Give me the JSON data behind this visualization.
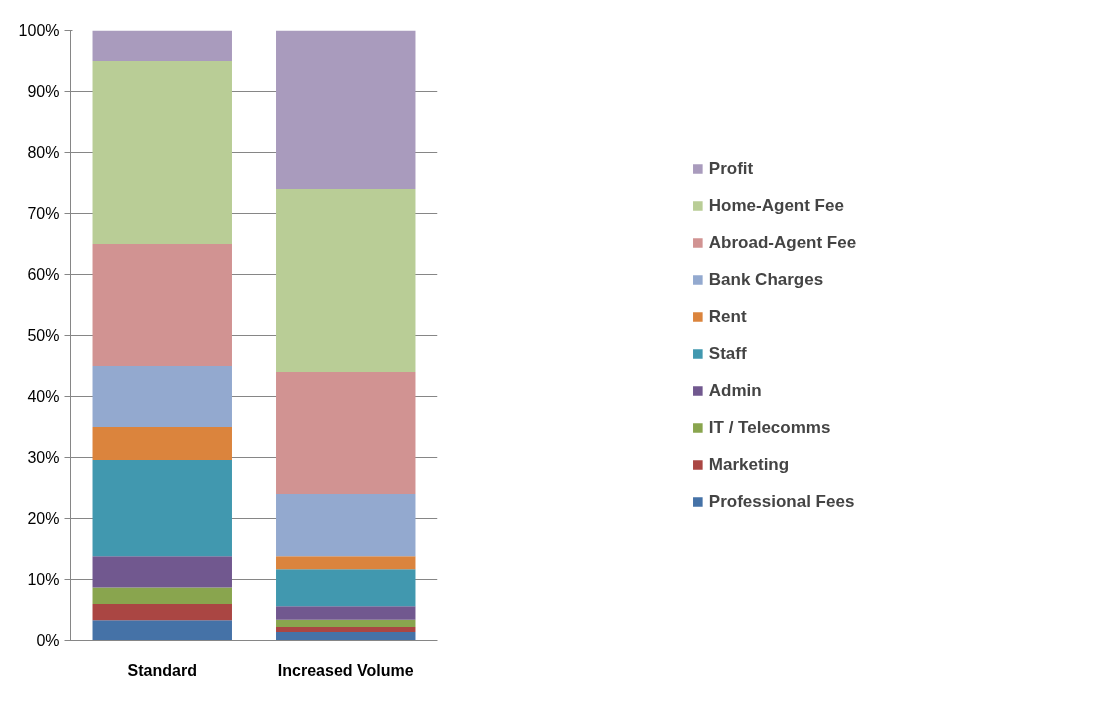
{
  "chart_data": {
    "type": "bar",
    "stacked": true,
    "categories": [
      "Standard",
      "Increased Volume"
    ],
    "series": [
      {
        "name": "Professional Fees",
        "color": "#4572a7",
        "values": [
          3.3,
          1.4
        ]
      },
      {
        "name": "Marketing",
        "color": "#aa4643",
        "values": [
          2.7,
          0.8
        ]
      },
      {
        "name": "IT / Telecomms",
        "color": "#89a54e",
        "values": [
          2.7,
          1.2
        ]
      },
      {
        "name": "Admin",
        "color": "#71588f",
        "values": [
          5.1,
          2.2
        ]
      },
      {
        "name": "Staff",
        "color": "#4198af",
        "values": [
          15.8,
          6.1
        ]
      },
      {
        "name": "Rent",
        "color": "#db843d",
        "values": [
          5.4,
          2.1
        ]
      },
      {
        "name": "Bank Charges",
        "color": "#93a9cf",
        "values": [
          10,
          10.2
        ]
      },
      {
        "name": "Abroad-Agent Fee",
        "color": "#d19392",
        "values": [
          20,
          20
        ]
      },
      {
        "name": "Home-Agent Fee",
        "color": "#b9cd96",
        "values": [
          30,
          30
        ]
      },
      {
        "name": "Profit",
        "color": "#a99bbd",
        "values": [
          5,
          26
        ]
      }
    ],
    "ylim": [
      0,
      100
    ],
    "yticks": [
      {
        "value": 0,
        "label": "0%"
      },
      {
        "value": 10,
        "label": "10%"
      },
      {
        "value": 20,
        "label": "20%"
      },
      {
        "value": 30,
        "label": "30%"
      },
      {
        "value": 40,
        "label": "40%"
      },
      {
        "value": 50,
        "label": "50%"
      },
      {
        "value": 60,
        "label": "60%"
      },
      {
        "value": 70,
        "label": "70%"
      },
      {
        "value": 80,
        "label": "80%"
      },
      {
        "value": 90,
        "label": "90%"
      },
      {
        "value": 100,
        "label": "100%"
      }
    ],
    "grid": "y",
    "legend": "right"
  }
}
